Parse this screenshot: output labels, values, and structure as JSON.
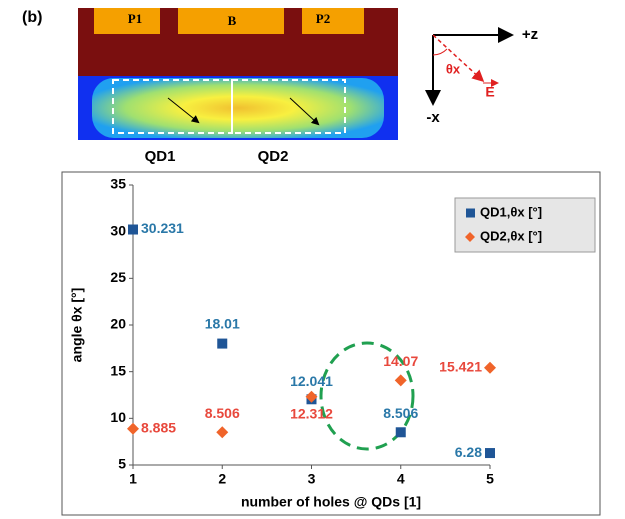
{
  "panel_label": "(b)",
  "diagram": {
    "regions": [
      "P1",
      "B",
      "P2"
    ],
    "dots": [
      "QD1",
      "QD2"
    ],
    "axis_z": "+z",
    "axis_x": "-x",
    "angle": "θx",
    "field": "E"
  },
  "chart_data": {
    "type": "scatter",
    "xlabel": "number of holes @ QDs [1]",
    "ylabel": "angle θx [°]",
    "xlim": [
      1,
      5
    ],
    "xticks": [
      1,
      2,
      3,
      4,
      5
    ],
    "ylim": [
      5,
      35
    ],
    "yticks": [
      5,
      10,
      15,
      20,
      25,
      30,
      35
    ],
    "grid": false,
    "legend": "upper right",
    "series": [
      {
        "name": "QD1,θx [°]",
        "color": "#1f5596",
        "label_color": "#2a78a8",
        "marker": "square",
        "x": [
          1,
          2,
          3,
          4,
          5
        ],
        "values": [
          30.231,
          18.01,
          12.041,
          8.506,
          6.28
        ]
      },
      {
        "name": "QD2,θx [°]",
        "color": "#f0642a",
        "label_color": "#e8483c",
        "marker": "diamond",
        "x": [
          1,
          2,
          3,
          4,
          5
        ],
        "values": [
          8.885,
          8.506,
          12.312,
          14.07,
          15.421
        ]
      }
    ]
  }
}
